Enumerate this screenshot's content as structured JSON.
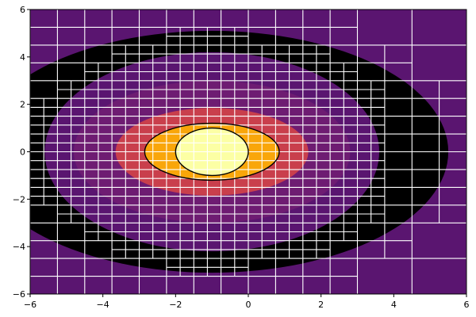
{
  "chart_data": {
    "type": "heatmap",
    "title": "",
    "xlabel": "",
    "ylabel": "",
    "xlim": [
      -6,
      6
    ],
    "ylim": [
      -6,
      6
    ],
    "x_ticks": [
      -6,
      -4,
      -2,
      0,
      2,
      4,
      6
    ],
    "y_ticks": [
      -6,
      -4,
      -2,
      0,
      2,
      4,
      6
    ],
    "x_tick_labels": [
      "−6",
      "−4",
      "−2",
      "0",
      "2",
      "4",
      "6"
    ],
    "y_tick_labels": [
      "−6",
      "−4",
      "−2",
      "0",
      "2",
      "4",
      "6"
    ],
    "grid": false,
    "legend": "none",
    "background_color": "#5a1570",
    "contour_center": [
      -1,
      0
    ],
    "contour_bands": [
      {
        "x_semi_axis": 6.5,
        "y_semi_axis": 5.1,
        "color": "#000000"
      },
      {
        "x_semi_axis": 4.6,
        "y_semi_axis": 4.2,
        "color": "#5a1570"
      },
      {
        "x_semi_axis": 3.8,
        "y_semi_axis": 3.0,
        "color": "#6e1c72"
      },
      {
        "x_semi_axis": 2.65,
        "y_semi_axis": 1.85,
        "color": "#c93f4c"
      },
      {
        "x_semi_axis": 1.85,
        "y_semi_axis": 1.2,
        "color": "#f9a60a"
      },
      {
        "x_semi_axis": 1.0,
        "y_semi_axis": 1.0,
        "color": "#fcffa4"
      }
    ],
    "contour_lines": [
      {
        "x_semi_axis": 1.85,
        "y_semi_axis": 1.2
      },
      {
        "x_semi_axis": 1.0,
        "y_semi_axis": 1.0
      }
    ],
    "mesh": {
      "line_color": "#ffffff",
      "domain_min": -6,
      "domain_max": 6,
      "max_depth": 5,
      "rings": [
        {
          "radius": 2.0,
          "depth": 5
        },
        {
          "radius": 3.9,
          "depth": 5
        },
        {
          "radius": 5.2,
          "depth": 4
        }
      ],
      "inner_band": {
        "x_semi_axis": 2.65,
        "y_semi_axis": 1.85,
        "depth": 5
      },
      "base_depth": 2,
      "default_depth": 3,
      "coarse_region_min_x": 3
    }
  }
}
